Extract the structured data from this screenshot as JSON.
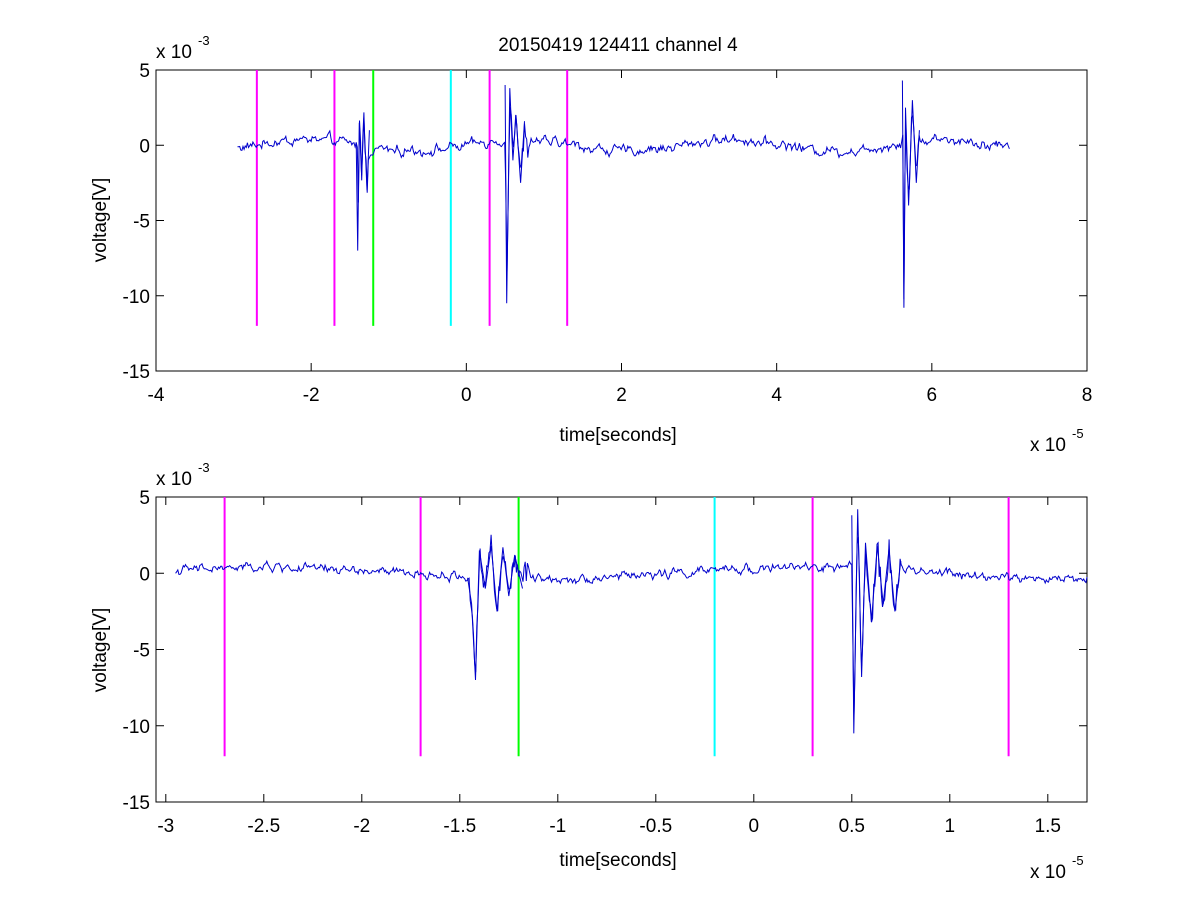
{
  "figure": {
    "title": "20150419 124411 channel 4"
  },
  "chart_data": [
    {
      "type": "line",
      "xlabel": "time[seconds]",
      "ylabel": "voltage[V]",
      "x_multiplier": "x 10",
      "x_multiplier_exp": "-5",
      "y_multiplier": "x 10",
      "y_multiplier_exp": "-3",
      "xlim": [
        -4,
        8
      ],
      "ylim": [
        -15,
        5
      ],
      "xticks": [
        -4,
        -2,
        0,
        2,
        4,
        6,
        8
      ],
      "xtick_labels": [
        "-4",
        "-2",
        "0",
        "2",
        "4",
        "6",
        "8"
      ],
      "yticks": [
        -15,
        -10,
        -5,
        0,
        5
      ],
      "ytick_labels": [
        "-15",
        "-10",
        "-5",
        "0",
        "5"
      ],
      "grid": false,
      "series": [
        {
          "color": "#0000cc",
          "x_range": [
            -2.95,
            7.0
          ],
          "baseline_noise": 0.35,
          "bursts": [
            {
              "x": [
                -1.4,
                -1.25
              ],
              "points": [
                [
                  -1.42,
                  0.2
                ],
                [
                  -1.4,
                  -7.0
                ],
                [
                  -1.38,
                  1.5
                ],
                [
                  -1.35,
                  -2.0
                ],
                [
                  -1.32,
                  1.8
                ],
                [
                  -1.28,
                  -3.0
                ],
                [
                  -1.25,
                  1.0
                ]
              ]
            },
            {
              "x": [
                0.5,
                0.8
              ],
              "points": [
                [
                  0.5,
                  4.0
                ],
                [
                  0.52,
                  -10.5
                ],
                [
                  0.54,
                  -3.5
                ],
                [
                  0.56,
                  3.8
                ],
                [
                  0.6,
                  -1.0
                ],
                [
                  0.64,
                  2.0
                ],
                [
                  0.7,
                  -2.5
                ],
                [
                  0.75,
                  1.6
                ]
              ]
            },
            {
              "x": [
                5.6,
                5.85
              ],
              "points": [
                [
                  5.62,
                  4.3
                ],
                [
                  5.64,
                  -10.8
                ],
                [
                  5.66,
                  2.5
                ],
                [
                  5.7,
                  -4.0
                ],
                [
                  5.75,
                  3.0
                ],
                [
                  5.8,
                  -2.5
                ],
                [
                  5.84,
                  1.0
                ]
              ]
            }
          ]
        }
      ],
      "markers": [
        {
          "x": -2.7,
          "color": "#ff00ff",
          "ymin": -12,
          "ymax": 5
        },
        {
          "x": -1.7,
          "color": "#ff00ff",
          "ymin": -12,
          "ymax": 5
        },
        {
          "x": -1.2,
          "color": "#00ff00",
          "ymin": -12,
          "ymax": 5
        },
        {
          "x": -0.2,
          "color": "#00ffff",
          "ymin": -12,
          "ymax": 5
        },
        {
          "x": 0.3,
          "color": "#ff00ff",
          "ymin": -12,
          "ymax": 5
        },
        {
          "x": 1.3,
          "color": "#ff00ff",
          "ymin": -12,
          "ymax": 5
        }
      ]
    },
    {
      "type": "line",
      "xlabel": "time[seconds]",
      "ylabel": "voltage[V]",
      "x_multiplier": "x 10",
      "x_multiplier_exp": "-5",
      "y_multiplier": "x 10",
      "y_multiplier_exp": "-3",
      "xlim": [
        -3.05,
        1.7
      ],
      "ylim": [
        -15,
        5
      ],
      "xticks": [
        -3,
        -2.5,
        -2,
        -1.5,
        -1,
        -0.5,
        0,
        0.5,
        1,
        1.5
      ],
      "xtick_labels": [
        "-3",
        "-2.5",
        "-2",
        "-1.5",
        "-1",
        "-0.5",
        "0",
        "0.5",
        "1",
        "1.5"
      ],
      "yticks": [
        -15,
        -10,
        -5,
        0,
        5
      ],
      "ytick_labels": [
        "-15",
        "-10",
        "-5",
        "0",
        "5"
      ],
      "grid": false,
      "series": [
        {
          "color": "#0000cc",
          "x_range": [
            -2.95,
            1.7
          ],
          "baseline_noise": 0.3,
          "bursts": [
            {
              "x": [
                -1.45,
                -1.15
              ],
              "points": [
                [
                  -1.46,
                  -0.3
                ],
                [
                  -1.44,
                  -2.0
                ],
                [
                  -1.42,
                  -7.0
                ],
                [
                  -1.4,
                  1.5
                ],
                [
                  -1.37,
                  -1.0
                ],
                [
                  -1.34,
                  1.8
                ],
                [
                  -1.31,
                  -2.5
                ],
                [
                  -1.28,
                  1.7
                ],
                [
                  -1.25,
                  -1.5
                ],
                [
                  -1.22,
                  1.2
                ],
                [
                  -1.18,
                  -1.0
                ]
              ]
            },
            {
              "x": [
                0.5,
                0.75
              ],
              "points": [
                [
                  0.5,
                  3.8
                ],
                [
                  0.51,
                  -10.5
                ],
                [
                  0.53,
                  4.2
                ],
                [
                  0.55,
                  -6.8
                ],
                [
                  0.57,
                  2.0
                ],
                [
                  0.6,
                  -3.2
                ],
                [
                  0.63,
                  1.8
                ],
                [
                  0.66,
                  -2.0
                ],
                [
                  0.69,
                  1.6
                ],
                [
                  0.72,
                  -2.5
                ],
                [
                  0.75,
                  0.8
                ]
              ]
            }
          ]
        }
      ],
      "markers": [
        {
          "x": -2.7,
          "color": "#ff00ff",
          "ymin": -12,
          "ymax": 5
        },
        {
          "x": -1.7,
          "color": "#ff00ff",
          "ymin": -12,
          "ymax": 5
        },
        {
          "x": -1.2,
          "color": "#00ff00",
          "ymin": -12,
          "ymax": 5
        },
        {
          "x": -0.2,
          "color": "#00ffff",
          "ymin": -12,
          "ymax": 5
        },
        {
          "x": 0.3,
          "color": "#ff00ff",
          "ymin": -12,
          "ymax": 5
        },
        {
          "x": 1.3,
          "color": "#ff00ff",
          "ymin": -12,
          "ymax": 5
        }
      ]
    }
  ]
}
